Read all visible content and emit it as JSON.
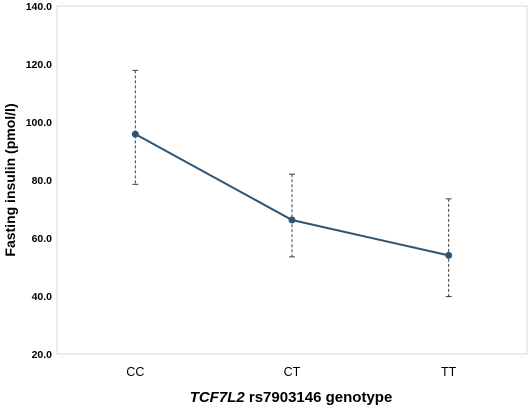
{
  "chart_data": {
    "type": "line",
    "categories": [
      "CC",
      "CT",
      "TT"
    ],
    "series": [
      {
        "values": [
          95.8,
          66.2,
          54.0
        ],
        "error_upper": [
          117.8,
          82.0,
          73.5
        ],
        "error_lower": [
          78.5,
          53.5,
          39.8
        ],
        "color": "#2e5573"
      }
    ],
    "ylim": [
      20.0,
      140.0
    ],
    "yticks": [
      "20.0",
      "40.0",
      "60.0",
      "80.0",
      "100.0",
      "120.0",
      "140.0"
    ],
    "ylabel": "Fasting insulin (pmol/l)",
    "xlabel_italic": "TCF7L2",
    "xlabel_rest": " rs7903146 genotype",
    "grid": false
  },
  "colors": {
    "line": "#2e5573",
    "marker": "#2e5573",
    "errorbar": "#404040",
    "axis": "#d9d9d9",
    "text": "#000000"
  }
}
